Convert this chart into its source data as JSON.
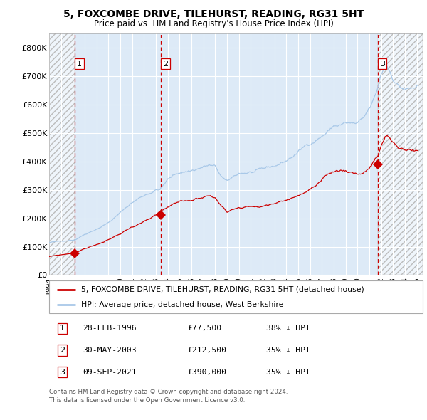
{
  "title1": "5, FOXCOMBE DRIVE, TILEHURST, READING, RG31 5HT",
  "title2": "Price paid vs. HM Land Registry's House Price Index (HPI)",
  "sale1_year": 1996.164,
  "sale1_price": 77500,
  "sale2_year": 2003.414,
  "sale2_price": 212500,
  "sale3_year": 2021.692,
  "sale3_price": 390000,
  "legend_property": "5, FOXCOMBE DRIVE, TILEHURST, READING, RG31 5HT (detached house)",
  "legend_hpi": "HPI: Average price, detached house, West Berkshire",
  "footer1": "Contains HM Land Registry data © Crown copyright and database right 2024.",
  "footer2": "This data is licensed under the Open Government Licence v3.0.",
  "property_line_color": "#cc0000",
  "hpi_line_color": "#a8c8e8",
  "vline_color": "#cc0000",
  "bg_blue_color": "#ddeaf7",
  "grid_color": "#ffffff",
  "ylim_max": 850000,
  "yticks": [
    0,
    100000,
    200000,
    300000,
    400000,
    500000,
    600000,
    700000,
    800000
  ],
  "ytick_labels": [
    "£0",
    "£100K",
    "£200K",
    "£300K",
    "£400K",
    "£500K",
    "£600K",
    "£700K",
    "£800K"
  ],
  "hpi_anchors_x": [
    1994.0,
    1995.0,
    1996.2,
    1997.0,
    1998.0,
    1999.0,
    2000.0,
    2001.0,
    2002.0,
    2003.0,
    2003.4,
    2004.0,
    2005.0,
    2006.0,
    2007.0,
    2007.5,
    2008.0,
    2008.5,
    2009.0,
    2009.5,
    2010.0,
    2011.0,
    2012.0,
    2013.0,
    2014.0,
    2015.0,
    2016.0,
    2017.0,
    2018.0,
    2019.0,
    2020.0,
    2020.5,
    2021.0,
    2021.5,
    2021.7,
    2022.0,
    2022.3,
    2022.5,
    2022.8,
    2023.0,
    2023.5,
    2024.0,
    2024.5,
    2025.0
  ],
  "hpi_anchors_y": [
    115000,
    118000,
    127000,
    148000,
    170000,
    195000,
    230000,
    268000,
    295000,
    318000,
    322000,
    355000,
    380000,
    390000,
    405000,
    410000,
    400000,
    365000,
    340000,
    355000,
    370000,
    375000,
    375000,
    385000,
    405000,
    435000,
    468000,
    500000,
    535000,
    545000,
    535000,
    545000,
    575000,
    615000,
    640000,
    690000,
    715000,
    720000,
    700000,
    685000,
    660000,
    650000,
    648000,
    652000
  ],
  "prop_anchors_x": [
    1994.0,
    1995.0,
    1996.164,
    1997.0,
    1998.0,
    1999.0,
    2000.0,
    2001.0,
    2002.0,
    2003.0,
    2003.414,
    2004.0,
    2005.0,
    2006.0,
    2007.0,
    2007.5,
    2008.0,
    2008.5,
    2009.0,
    2009.5,
    2010.0,
    2011.0,
    2012.0,
    2013.0,
    2014.0,
    2015.0,
    2016.0,
    2017.0,
    2018.0,
    2019.0,
    2020.0,
    2020.5,
    2021.0,
    2021.5,
    2021.692,
    2022.0,
    2022.3,
    2022.5,
    2022.8,
    2023.0,
    2023.5,
    2024.0,
    2024.5,
    2025.0
  ],
  "prop_anchors_y": [
    65000,
    70000,
    77500,
    92000,
    107000,
    122000,
    143000,
    168000,
    186000,
    200000,
    212500,
    222000,
    235000,
    242000,
    257000,
    262000,
    253000,
    228000,
    213000,
    222000,
    233000,
    237000,
    237000,
    242000,
    255000,
    272000,
    293000,
    312000,
    335000,
    341000,
    335000,
    340000,
    358000,
    384000,
    390000,
    425000,
    450000,
    455000,
    435000,
    427000,
    410000,
    407000,
    405000,
    408000
  ]
}
